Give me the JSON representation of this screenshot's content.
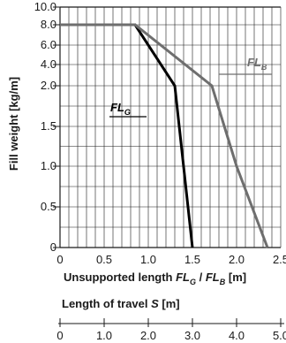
{
  "chart_data": {
    "type": "line",
    "ylabel": "Fill weight [kg/m]",
    "y_ticks": [
      "10.0",
      "8.0",
      "6.0",
      "4.0",
      "2.0",
      "1.5",
      "1.0",
      "0.5",
      "0"
    ],
    "x_ticks": [
      "0",
      "0.5",
      "1.0",
      "1.5",
      "2.0",
      "2.5"
    ],
    "xlabel": {
      "prefix": "Unsupported length ",
      "fl": "FL",
      "g": "G",
      "sep": " / ",
      "b": "B",
      "unit": " [m]"
    },
    "travel_axis": {
      "label_prefix": "Length of travel ",
      "label_var": "S",
      "label_unit": " [m]",
      "ticks": [
        "0",
        "1.0",
        "2.0",
        "3.0",
        "4.0",
        "5.0"
      ]
    },
    "series": [
      {
        "name": "FL",
        "subscript": "G",
        "color": "#000000",
        "x": [
          0,
          0.85,
          1.3,
          1.5
        ],
        "y": [
          "8.0",
          "8.0",
          "2.0",
          "0"
        ]
      },
      {
        "name": "FL",
        "subscript": "B",
        "color": "#6e6e6e",
        "x": [
          0,
          0.85,
          1.72,
          2.0,
          2.35
        ],
        "y": [
          "8.0",
          "8.0",
          "2.0",
          "1.0",
          "0"
        ]
      }
    ],
    "grid": true,
    "colors": {
      "grid": "#1a1a1a",
      "fl_g": "#000000",
      "fl_b": "#6e6e6e"
    }
  }
}
